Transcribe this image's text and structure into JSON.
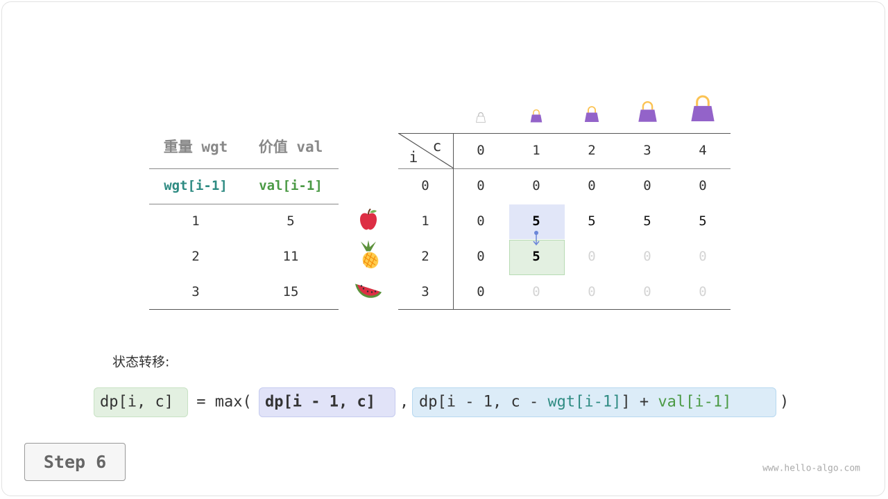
{
  "items_table": {
    "headers": [
      "重量 wgt",
      "价值 val"
    ],
    "subheaders": [
      "wgt[i-1]",
      "val[i-1]"
    ],
    "rows": [
      [
        "1",
        "5"
      ],
      [
        "2",
        "11"
      ],
      [
        "3",
        "15"
      ]
    ],
    "fruits": [
      "apple-icon",
      "pineapple-icon",
      "watermelon-icon"
    ],
    "colors": {
      "wgt": "#2e8b82",
      "val": "#4b9a45"
    }
  },
  "dp_table": {
    "corner_col": "c",
    "corner_row": "i",
    "col_headers": [
      "0",
      "1",
      "2",
      "3",
      "4"
    ],
    "row_headers": [
      "0",
      "1",
      "2",
      "3"
    ],
    "cells": [
      [
        "0",
        "0",
        "0",
        "0",
        "0"
      ],
      [
        "0",
        "5",
        "5",
        "5",
        "5"
      ],
      [
        "0",
        "5",
        "0",
        "0",
        "0"
      ],
      [
        "0",
        "0",
        "0",
        "0",
        "0"
      ]
    ],
    "filled": [
      [
        true,
        true,
        true,
        true,
        true
      ],
      [
        true,
        true,
        true,
        true,
        true
      ],
      [
        true,
        true,
        false,
        false,
        false
      ],
      [
        true,
        false,
        false,
        false,
        false
      ]
    ],
    "highlight_source": [
      1,
      1
    ],
    "highlight_target": [
      2,
      1
    ],
    "colors": {
      "source": "#e1e6f8",
      "target": "#e3f0e1"
    }
  },
  "transition_label": "状态转移:",
  "formula": {
    "lhs": "dp[i, c]",
    "eq": " = max(",
    "arg1": "dp[i - 1, c]",
    "comma": ",",
    "arg2_a": "dp[i - 1, c - ",
    "arg2_wgt": "wgt[i-1]",
    "arg2_b": "] + ",
    "arg2_val": "val[i-1]",
    "close": ")"
  },
  "step_button": "Step 6",
  "watermark": "www.hello-algo.com"
}
